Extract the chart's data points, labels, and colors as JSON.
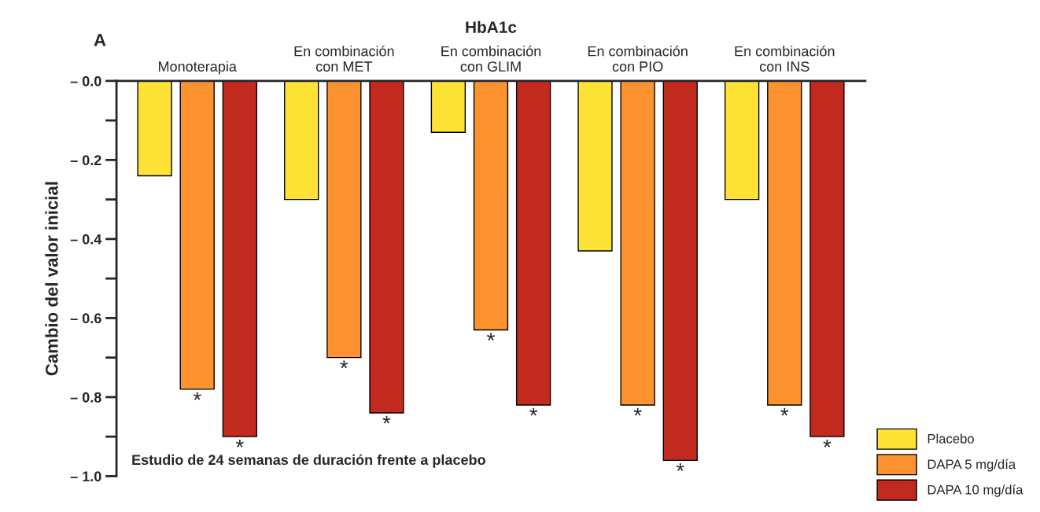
{
  "chart_data": {
    "type": "bar",
    "title": "HbA1c",
    "ylabel": "Cambio del valor inicial",
    "xlabel": "Estudio de 24 semanas de duración frente a placebo",
    "annotations": [
      "A"
    ],
    "categories": [
      "Monoterapia",
      "En combinación\ncon MET",
      "En combinación\ncon GLIM",
      "En combinación\ncon PIO",
      "En combinación\ncon INS"
    ],
    "series": [
      {
        "name": "Placebo",
        "color": "#fee236",
        "values": [
          -0.24,
          -0.3,
          -0.13,
          -0.43,
          -0.3
        ]
      },
      {
        "name": "DAPA 5 mg/día",
        "color": "#fd9330",
        "values": [
          -0.78,
          -0.7,
          -0.63,
          -0.82,
          -0.82
        ],
        "value_labels": [
          "*",
          "*",
          "*",
          "*",
          "*"
        ]
      },
      {
        "name": "DAPA 10 mg/día",
        "color": "#c22a1f",
        "values": [
          -0.9,
          -0.84,
          -0.82,
          -0.96,
          -0.9
        ],
        "value_labels": [
          "*",
          "*",
          "*",
          "*",
          "*"
        ]
      }
    ],
    "ylim": [
      -1.0,
      0.0
    ],
    "yticks": [
      {
        "value": 0.0,
        "label": "– 0.0"
      },
      {
        "value": -0.1,
        "label": null
      },
      {
        "value": -0.2,
        "label": "– 0.2"
      },
      {
        "value": -0.3,
        "label": null
      },
      {
        "value": -0.4,
        "label": "– 0.4"
      },
      {
        "value": -0.5,
        "label": null
      },
      {
        "value": -0.6,
        "label": "– 0.6"
      },
      {
        "value": -0.7,
        "label": null
      },
      {
        "value": -0.8,
        "label": "– 0.8"
      },
      {
        "value": -0.9,
        "label": null
      },
      {
        "value": -1.0,
        "label": "– 1.0"
      }
    ],
    "grid": false,
    "legend": "bottom right"
  }
}
